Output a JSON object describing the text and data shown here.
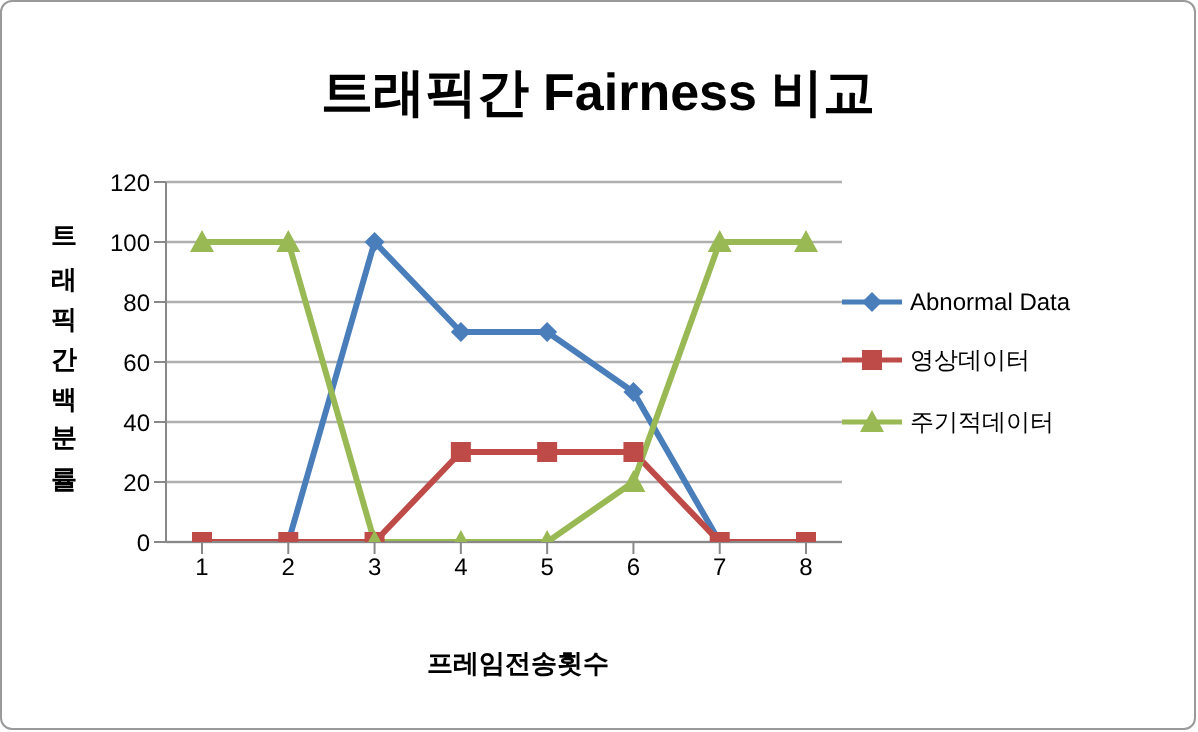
{
  "chart_data": {
    "type": "line",
    "title": "트래픽간 Fairness 비교",
    "xlabel": "프레임전송횟수",
    "ylabel": "트래픽간백분률",
    "categories": [
      "1",
      "2",
      "3",
      "4",
      "5",
      "6",
      "7",
      "8"
    ],
    "series": [
      {
        "name": "Abnormal Data",
        "color": "#4a7ebb",
        "marker": "diamond",
        "values": [
          null,
          0,
          100,
          70,
          70,
          50,
          0,
          null
        ]
      },
      {
        "name": "영상데이터",
        "color": "#be4b48",
        "marker": "square",
        "values": [
          0,
          0,
          0,
          30,
          30,
          30,
          0,
          0
        ]
      },
      {
        "name": "주기적데이터",
        "color": "#98b954",
        "marker": "triangle",
        "values": [
          100,
          100,
          0,
          0,
          0,
          20,
          100,
          100
        ]
      }
    ],
    "ylim": [
      0,
      120
    ],
    "yticks": [
      0,
      20,
      40,
      60,
      80,
      100,
      120
    ],
    "grid": "y",
    "legend": "right",
    "line_style": "solid"
  }
}
